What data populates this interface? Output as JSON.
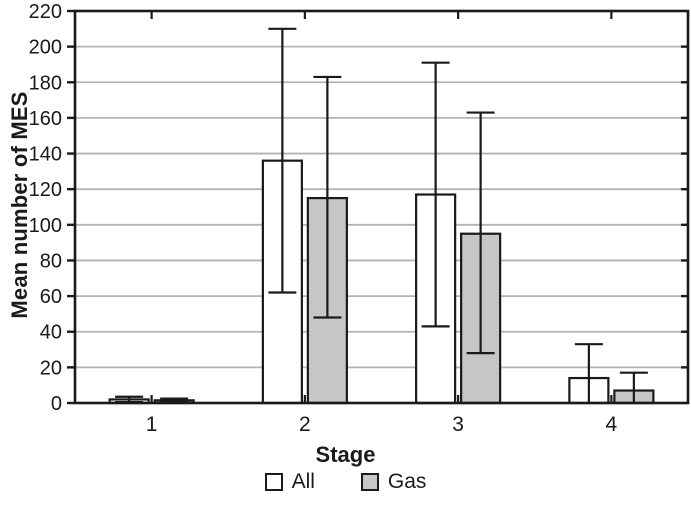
{
  "chart_data": {
    "type": "bar",
    "title": "",
    "xlabel": "Stage",
    "ylabel": "Mean number of MES",
    "categories": [
      "1",
      "2",
      "3",
      "4"
    ],
    "ylim": [
      0,
      220
    ],
    "yticks": [
      0,
      20,
      40,
      60,
      80,
      100,
      120,
      140,
      160,
      180,
      200,
      220
    ],
    "grid": "horizontal",
    "legend_position": "bottom-center",
    "series": [
      {
        "name": "All",
        "fill": "#ffffff",
        "values": [
          2,
          136,
          117,
          14
        ],
        "err_low": [
          0.5,
          62,
          43,
          null
        ],
        "err_high": [
          3.5,
          210,
          191,
          33
        ]
      },
      {
        "name": "Gas",
        "fill": "#c6c6c6",
        "values": [
          1.5,
          115,
          95,
          7
        ],
        "err_low": [
          0.5,
          48,
          28,
          null
        ],
        "err_high": [
          2.5,
          183,
          163,
          17
        ]
      }
    ]
  },
  "colors": {
    "ink": "#1a1a1a",
    "gridline": "#b3b3b3",
    "background": "#ffffff",
    "bar_all_fill": "#ffffff",
    "bar_gas_fill": "#c6c6c6"
  }
}
